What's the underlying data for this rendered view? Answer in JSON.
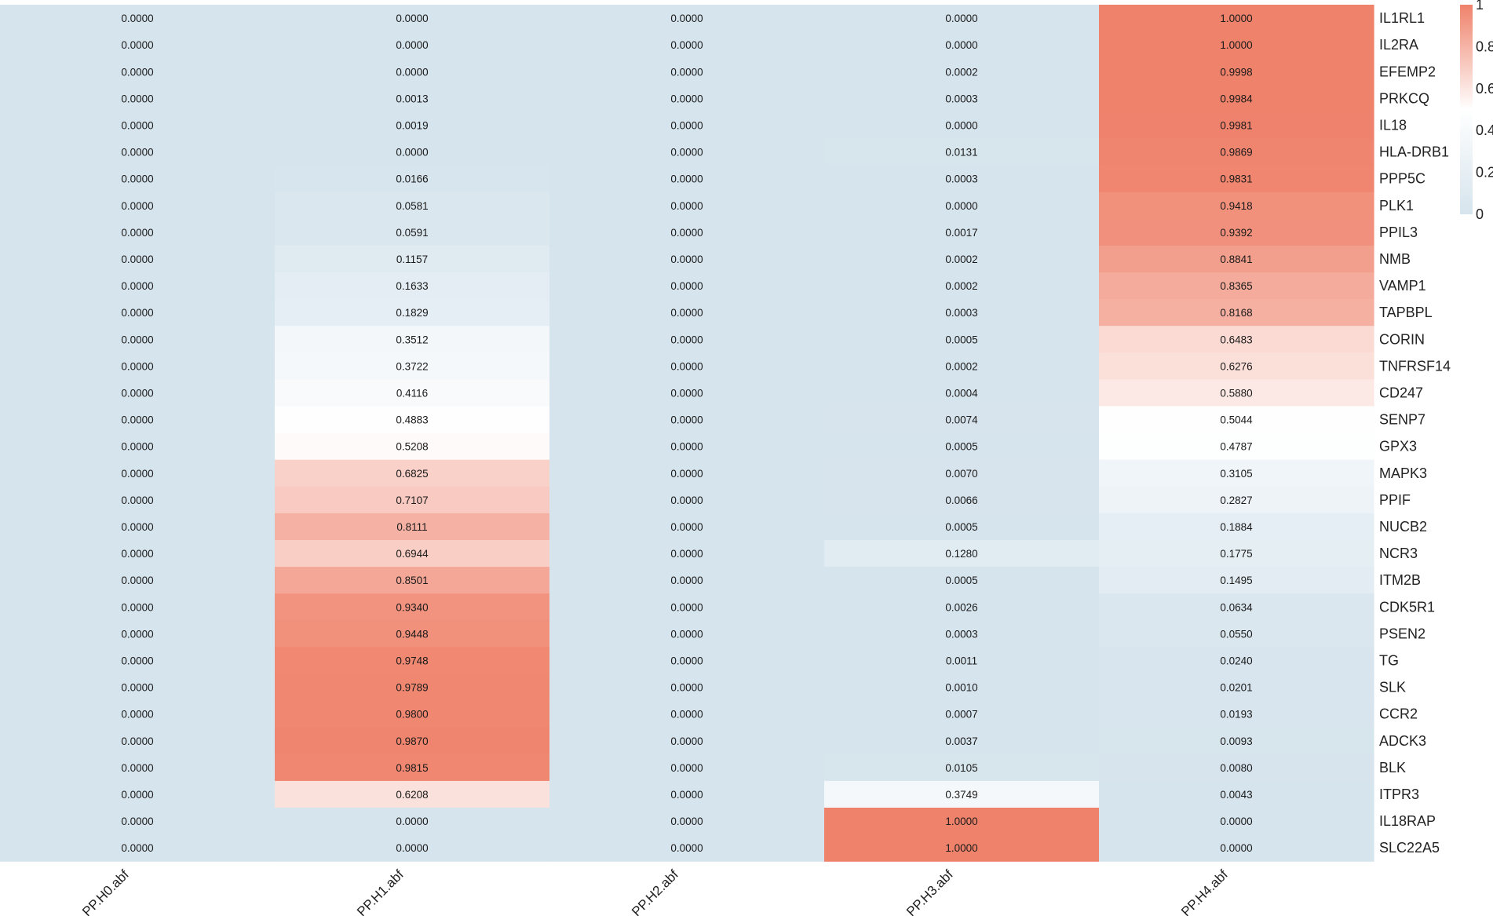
{
  "chart_data": {
    "type": "heatmap",
    "columns": [
      "PP.H0.abf",
      "PP.H1.abf",
      "PP.H2.abf",
      "PP.H3.abf",
      "PP.H4.abf"
    ],
    "rows": [
      "IL1RL1",
      "IL2RA",
      "EFEMP2",
      "PRKCQ",
      "IL18",
      "HLA-DRB1",
      "PPP5C",
      "PLK1",
      "PPIL3",
      "NMB",
      "VAMP1",
      "TAPBPL",
      "CORIN",
      "TNFRSF14",
      "CD247",
      "SENP7",
      "GPX3",
      "MAPK3",
      "PPIF",
      "NUCB2",
      "NCR3",
      "ITM2B",
      "CDK5R1",
      "PSEN2",
      "TG",
      "SLK",
      "CCR2",
      "ADCK3",
      "BLK",
      "ITPR3",
      "IL18RAP",
      "SLC22A5"
    ],
    "values": [
      [
        "0.0000",
        "0.0000",
        "0.0000",
        "0.0000",
        "1.0000"
      ],
      [
        "0.0000",
        "0.0000",
        "0.0000",
        "0.0000",
        "1.0000"
      ],
      [
        "0.0000",
        "0.0000",
        "0.0000",
        "0.0002",
        "0.9998"
      ],
      [
        "0.0000",
        "0.0013",
        "0.0000",
        "0.0003",
        "0.9984"
      ],
      [
        "0.0000",
        "0.0019",
        "0.0000",
        "0.0000",
        "0.9981"
      ],
      [
        "0.0000",
        "0.0000",
        "0.0000",
        "0.0131",
        "0.9869"
      ],
      [
        "0.0000",
        "0.0166",
        "0.0000",
        "0.0003",
        "0.9831"
      ],
      [
        "0.0000",
        "0.0581",
        "0.0000",
        "0.0000",
        "0.9418"
      ],
      [
        "0.0000",
        "0.0591",
        "0.0000",
        "0.0017",
        "0.9392"
      ],
      [
        "0.0000",
        "0.1157",
        "0.0000",
        "0.0002",
        "0.8841"
      ],
      [
        "0.0000",
        "0.1633",
        "0.0000",
        "0.0002",
        "0.8365"
      ],
      [
        "0.0000",
        "0.1829",
        "0.0000",
        "0.0003",
        "0.8168"
      ],
      [
        "0.0000",
        "0.3512",
        "0.0000",
        "0.0005",
        "0.6483"
      ],
      [
        "0.0000",
        "0.3722",
        "0.0000",
        "0.0002",
        "0.6276"
      ],
      [
        "0.0000",
        "0.4116",
        "0.0000",
        "0.0004",
        "0.5880"
      ],
      [
        "0.0000",
        "0.4883",
        "0.0000",
        "0.0074",
        "0.5044"
      ],
      [
        "0.0000",
        "0.5208",
        "0.0000",
        "0.0005",
        "0.4787"
      ],
      [
        "0.0000",
        "0.6825",
        "0.0000",
        "0.0070",
        "0.3105"
      ],
      [
        "0.0000",
        "0.7107",
        "0.0000",
        "0.0066",
        "0.2827"
      ],
      [
        "0.0000",
        "0.8111",
        "0.0000",
        "0.0005",
        "0.1884"
      ],
      [
        "0.0000",
        "0.6944",
        "0.0000",
        "0.1280",
        "0.1775"
      ],
      [
        "0.0000",
        "0.8501",
        "0.0000",
        "0.0005",
        "0.1495"
      ],
      [
        "0.0000",
        "0.9340",
        "0.0000",
        "0.0026",
        "0.0634"
      ],
      [
        "0.0000",
        "0.9448",
        "0.0000",
        "0.0003",
        "0.0550"
      ],
      [
        "0.0000",
        "0.9748",
        "0.0000",
        "0.0011",
        "0.0240"
      ],
      [
        "0.0000",
        "0.9789",
        "0.0000",
        "0.0010",
        "0.0201"
      ],
      [
        "0.0000",
        "0.9800",
        "0.0000",
        "0.0007",
        "0.0193"
      ],
      [
        "0.0000",
        "0.9870",
        "0.0000",
        "0.0037",
        "0.0093"
      ],
      [
        "0.0000",
        "0.9815",
        "0.0000",
        "0.0105",
        "0.0080"
      ],
      [
        "0.0000",
        "0.6208",
        "0.0000",
        "0.3749",
        "0.0043"
      ],
      [
        "0.0000",
        "0.0000",
        "0.0000",
        "1.0000",
        "0.0000"
      ],
      [
        "0.0000",
        "0.0000",
        "0.0000",
        "1.0000",
        "0.0000"
      ]
    ],
    "colorbar": {
      "ticks": [
        "0",
        "0.2",
        "0.4",
        "0.6",
        "0.8",
        "1"
      ],
      "range": [
        0,
        1
      ]
    },
    "colors": {
      "low": "#d6e4ed",
      "mid": "#ffffff",
      "high": "#ef826b"
    },
    "title": "",
    "xlabel": "",
    "ylabel": ""
  }
}
